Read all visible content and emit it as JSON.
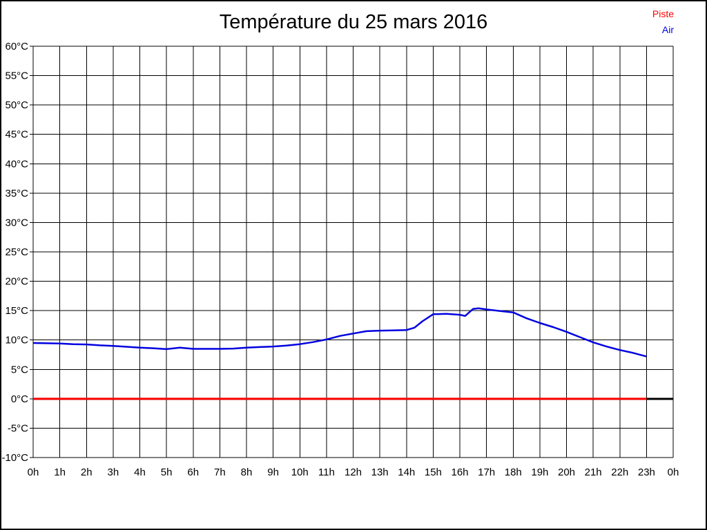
{
  "title": "Température du 25 mars 2016",
  "legend": {
    "position": "top-right",
    "items": [
      {
        "label": "Piste",
        "color": "#ff0000"
      },
      {
        "label": "Air",
        "color": "#0000e8"
      }
    ]
  },
  "chart_data": {
    "type": "line",
    "title": "Température du 25 mars 2016",
    "xlabel": "",
    "ylabel": "",
    "xlim": [
      0,
      24
    ],
    "ylim": [
      -10,
      60
    ],
    "grid": true,
    "grid_color": "#000000",
    "background": "#ffffff",
    "xtick_labels": [
      "0h",
      "1h",
      "2h",
      "3h",
      "4h",
      "5h",
      "6h",
      "7h",
      "8h",
      "9h",
      "10h",
      "11h",
      "12h",
      "13h",
      "14h",
      "15h",
      "16h",
      "17h",
      "18h",
      "19h",
      "20h",
      "21h",
      "22h",
      "23h",
      "0h"
    ],
    "ytick_values": [
      60,
      55,
      50,
      45,
      40,
      35,
      30,
      25,
      20,
      15,
      10,
      5,
      0,
      -5,
      -10
    ],
    "ytick_suffix": "°C",
    "zero_line": {
      "value": 0,
      "color": "#000000",
      "width": 3
    },
    "legend_position": "top-right",
    "series": [
      {
        "name": "Piste",
        "color": "#ff0000",
        "width": 3,
        "points": [
          [
            0,
            0
          ],
          [
            23,
            0
          ]
        ]
      },
      {
        "name": "Air",
        "color": "#0000e0",
        "width": 2.5,
        "points": [
          [
            0,
            9.5
          ],
          [
            0.5,
            9.45
          ],
          [
            1,
            9.4
          ],
          [
            1.5,
            9.3
          ],
          [
            2,
            9.25
          ],
          [
            2.5,
            9.1
          ],
          [
            3,
            9.0
          ],
          [
            3.5,
            8.85
          ],
          [
            4,
            8.7
          ],
          [
            4.5,
            8.6
          ],
          [
            5,
            8.45
          ],
          [
            5.5,
            8.7
          ],
          [
            6,
            8.5
          ],
          [
            6.5,
            8.5
          ],
          [
            7,
            8.5
          ],
          [
            7.5,
            8.55
          ],
          [
            8,
            8.7
          ],
          [
            8.5,
            8.8
          ],
          [
            9,
            8.9
          ],
          [
            9.5,
            9.05
          ],
          [
            10,
            9.3
          ],
          [
            10.5,
            9.65
          ],
          [
            11,
            10.1
          ],
          [
            11.5,
            10.7
          ],
          [
            12,
            11.1
          ],
          [
            12.5,
            11.5
          ],
          [
            13,
            11.6
          ],
          [
            13.5,
            11.65
          ],
          [
            14,
            11.7
          ],
          [
            14.3,
            12.1
          ],
          [
            14.6,
            13.2
          ],
          [
            15,
            14.4
          ],
          [
            15.5,
            14.45
          ],
          [
            16,
            14.3
          ],
          [
            16.2,
            14.1
          ],
          [
            16.5,
            15.3
          ],
          [
            16.7,
            15.4
          ],
          [
            17,
            15.2
          ],
          [
            17.5,
            14.95
          ],
          [
            18,
            14.7
          ],
          [
            18.5,
            13.7
          ],
          [
            19,
            12.9
          ],
          [
            19.5,
            12.2
          ],
          [
            20,
            11.4
          ],
          [
            20.5,
            10.5
          ],
          [
            21,
            9.6
          ],
          [
            21.5,
            8.9
          ],
          [
            22,
            8.3
          ],
          [
            22.5,
            7.8
          ],
          [
            23,
            7.2
          ]
        ]
      }
    ]
  }
}
